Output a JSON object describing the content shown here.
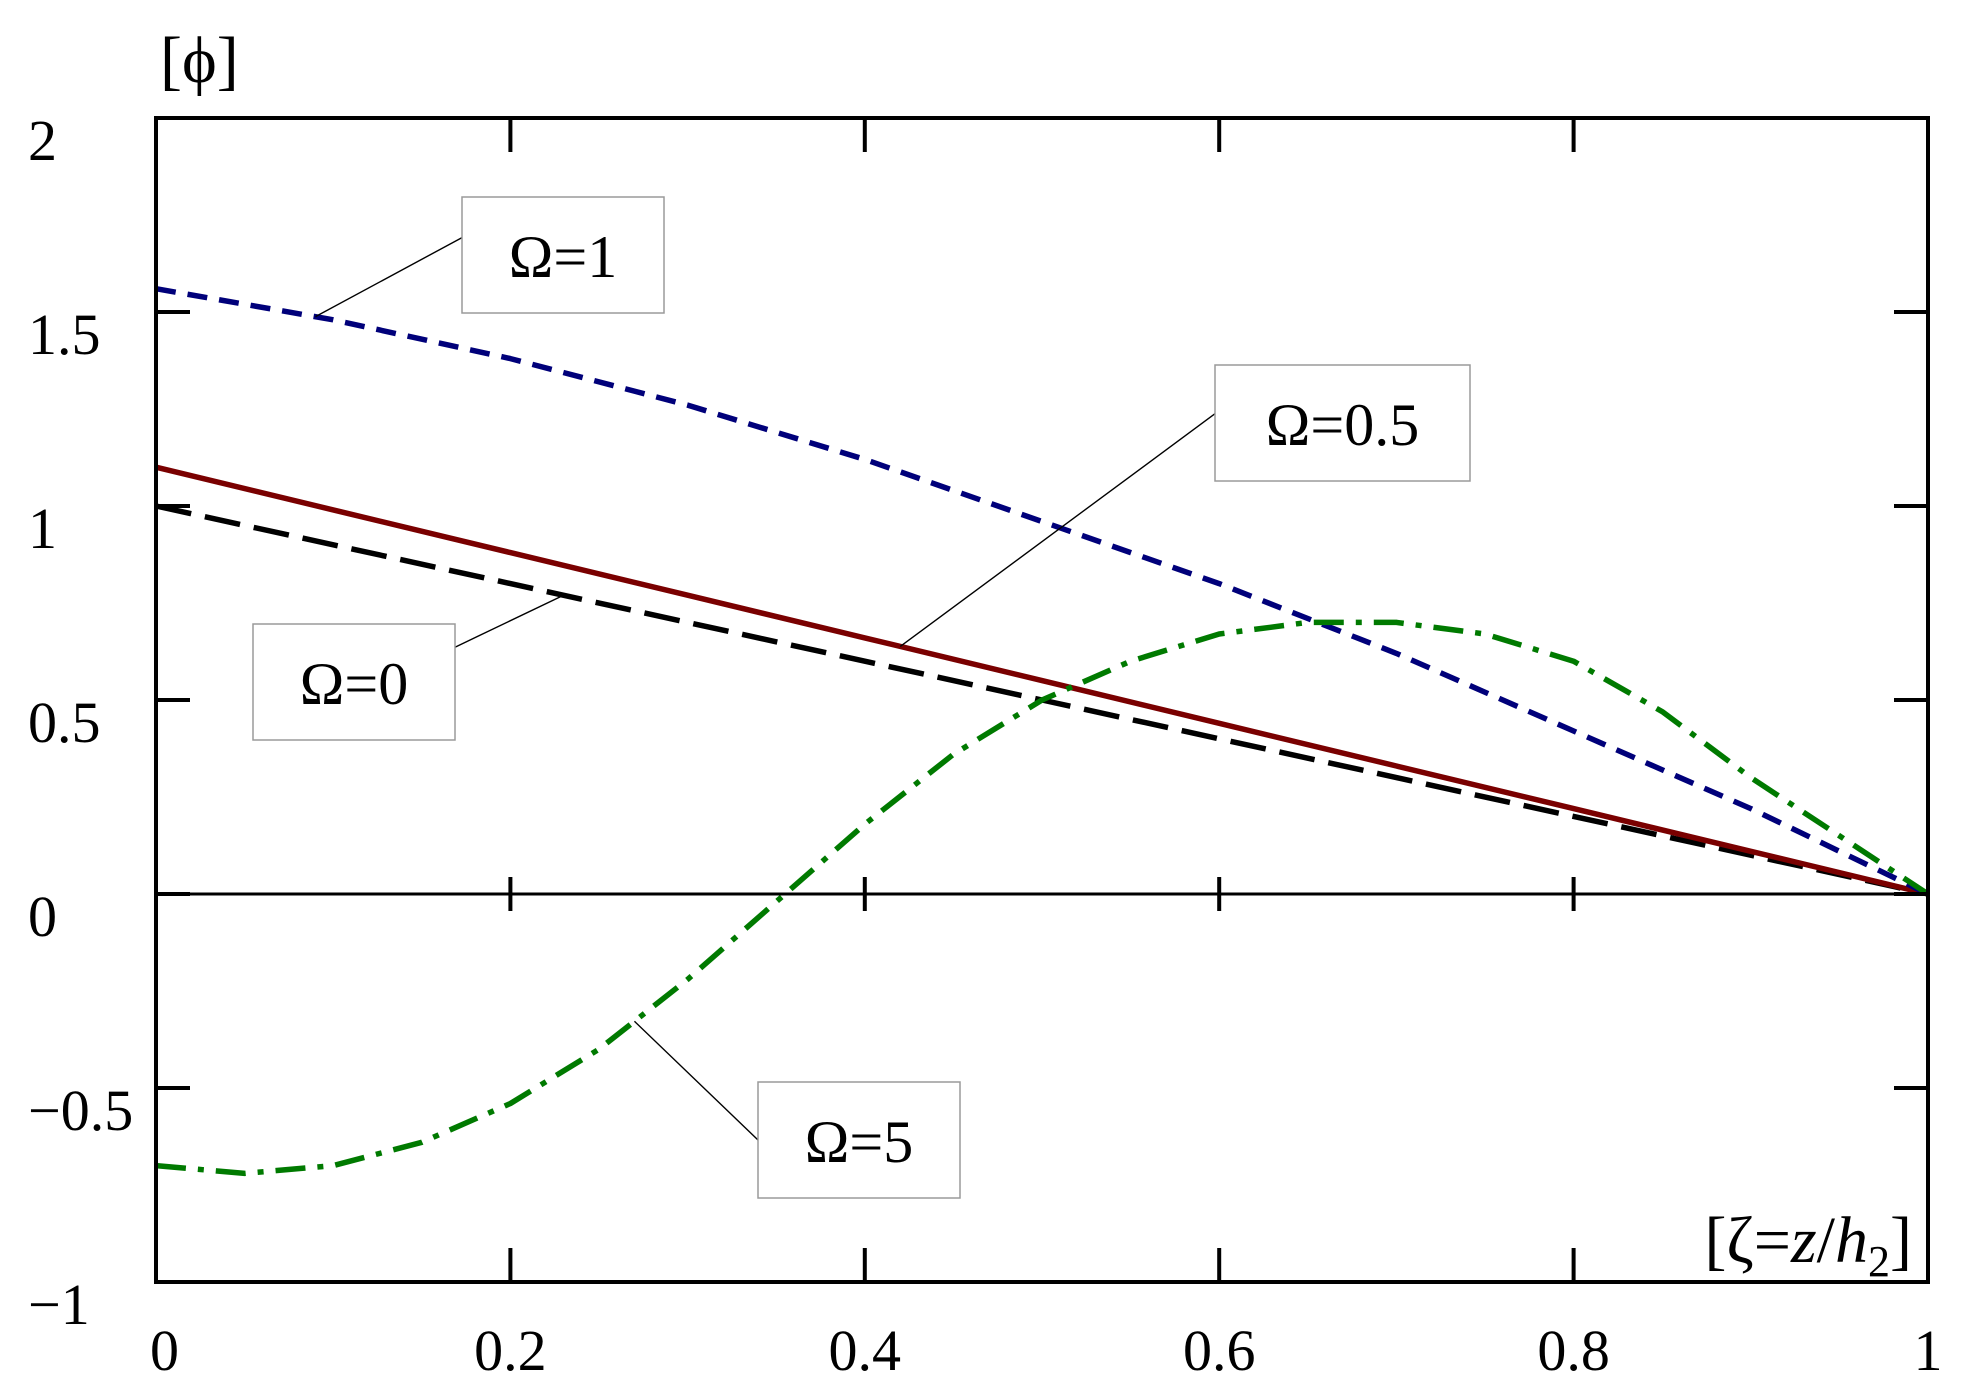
{
  "chart_data": {
    "type": "line",
    "title": "",
    "xlabel": {
      "prefix": "[ζ=",
      "z": "z",
      "slash": "/",
      "h": "h",
      "sub": "2",
      "suffix": "]"
    },
    "ylabel": "[ϕ]",
    "xlim": [
      0,
      1
    ],
    "ylim": [
      -1,
      2
    ],
    "grid": false,
    "x_ticks": [
      "0",
      "0.2",
      "0.4",
      "0.6",
      "0.8",
      "1"
    ],
    "y_ticks": [
      "−1",
      "−0.5",
      "0",
      "0.5",
      "1",
      "1.5",
      "2"
    ],
    "series": [
      {
        "name": "Ω=0",
        "color": "#000000",
        "dash": "long-dash",
        "x": [
          0,
          0.1,
          0.2,
          0.3,
          0.4,
          0.5,
          0.6,
          0.7,
          0.8,
          0.9,
          1.0
        ],
        "y": [
          1.0,
          0.9,
          0.8,
          0.7,
          0.6,
          0.5,
          0.4,
          0.3,
          0.2,
          0.1,
          0.0
        ]
      },
      {
        "name": "Ω=0.5",
        "color": "#7a0000",
        "dash": "solid",
        "x": [
          0,
          0.1,
          0.2,
          0.3,
          0.4,
          0.5,
          0.6,
          0.7,
          0.8,
          0.9,
          1.0
        ],
        "y": [
          1.1,
          0.99,
          0.88,
          0.77,
          0.66,
          0.55,
          0.44,
          0.33,
          0.22,
          0.11,
          0.0
        ]
      },
      {
        "name": "Ω=1",
        "color": "#00007a",
        "dash": "short-dash",
        "x": [
          0,
          0.1,
          0.2,
          0.3,
          0.4,
          0.5,
          0.6,
          0.7,
          0.8,
          0.9,
          1.0
        ],
        "y": [
          1.56,
          1.48,
          1.38,
          1.26,
          1.12,
          0.96,
          0.8,
          0.62,
          0.42,
          0.22,
          0.0
        ]
      },
      {
        "name": "Ω=5",
        "color": "#007a00",
        "dash": "dash-dot",
        "x": [
          0,
          0.05,
          0.1,
          0.15,
          0.2,
          0.25,
          0.3,
          0.35,
          0.4,
          0.45,
          0.5,
          0.55,
          0.6,
          0.65,
          0.7,
          0.75,
          0.8,
          0.85,
          0.9,
          0.95,
          1.0
        ],
        "y": [
          -0.7,
          -0.72,
          -0.7,
          -0.64,
          -0.54,
          -0.4,
          -0.22,
          -0.02,
          0.18,
          0.36,
          0.5,
          0.6,
          0.67,
          0.7,
          0.7,
          0.67,
          0.6,
          0.47,
          0.3,
          0.15,
          0.0
        ]
      }
    ],
    "annotations": [
      {
        "text": "Ω=1",
        "series": 2,
        "at_x": 0.09
      },
      {
        "text": "Ω=0.5",
        "series": 1,
        "at_x": 0.42
      },
      {
        "text": "Ω=0",
        "series": 0,
        "at_x": 0.23
      },
      {
        "text": "Ω=5",
        "series": 3,
        "at_x": 0.27
      }
    ]
  }
}
